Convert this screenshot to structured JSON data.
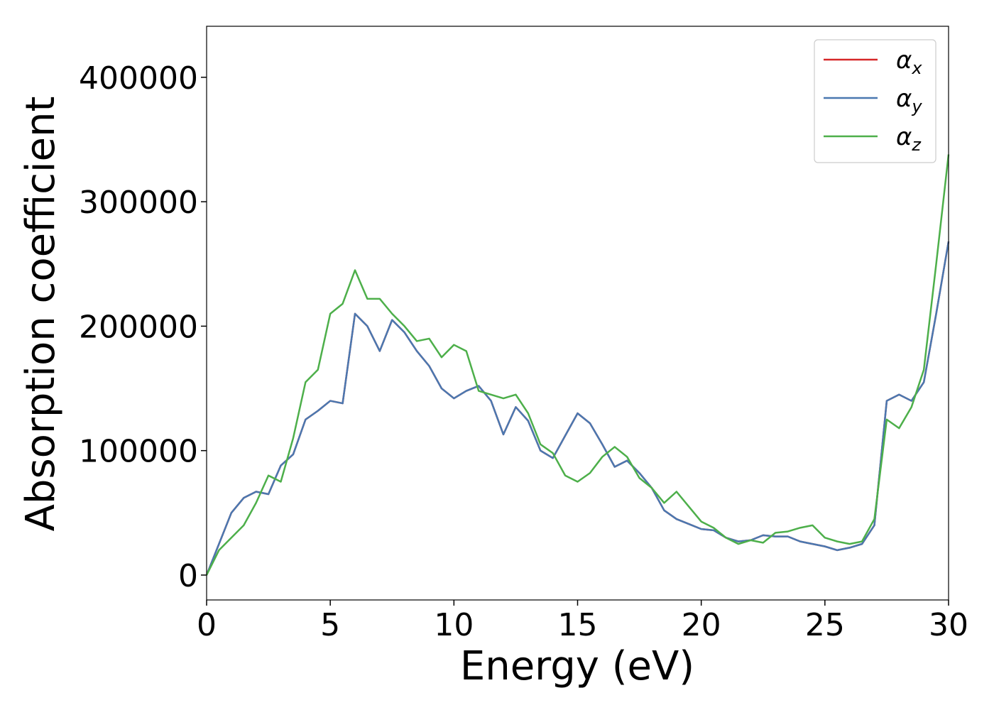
{
  "chart_data": {
    "type": "line",
    "xlabel": "Energy (eV)",
    "ylabel": "Absorption coefficient",
    "x": [
      0,
      0.5,
      1,
      1.5,
      2,
      2.5,
      3,
      3.5,
      4,
      4.5,
      5,
      5.5,
      6,
      6.5,
      7,
      7.5,
      8,
      8.5,
      9,
      9.5,
      10,
      10.5,
      11,
      11.5,
      12,
      12.5,
      13,
      13.5,
      14,
      14.5,
      15,
      15.5,
      16,
      16.5,
      17,
      17.5,
      18,
      18.5,
      19,
      19.5,
      20,
      20.5,
      21,
      21.5,
      22,
      22.5,
      23,
      23.5,
      24,
      24.5,
      25,
      25.5,
      26,
      26.5,
      27,
      27.5,
      28,
      28.5,
      29,
      29.5,
      30
    ],
    "series": [
      {
        "name": "αx",
        "color": "#d62728",
        "values": [
          0,
          25000,
          50000,
          62000,
          67000,
          65000,
          88000,
          97000,
          125000,
          132000,
          140000,
          138000,
          210000,
          200000,
          180000,
          205000,
          195000,
          180000,
          168000,
          150000,
          142000,
          148000,
          152000,
          140000,
          113000,
          135000,
          124000,
          100000,
          94000,
          112000,
          130000,
          122000,
          105000,
          87000,
          92000,
          82000,
          70000,
          52000,
          45000,
          41000,
          37000,
          36000,
          30000,
          27000,
          28000,
          32000,
          31000,
          31000,
          27000,
          25000,
          23000,
          20000,
          22000,
          25000,
          40000,
          140000,
          145000,
          140000,
          155000,
          210000,
          268000
        ]
      },
      {
        "name": "αy",
        "color": "#4a78b0",
        "values": [
          0,
          25000,
          50000,
          62000,
          67000,
          65000,
          88000,
          97000,
          125000,
          132000,
          140000,
          138000,
          210000,
          200000,
          180000,
          205000,
          195000,
          180000,
          168000,
          150000,
          142000,
          148000,
          152000,
          140000,
          113000,
          135000,
          124000,
          100000,
          94000,
          112000,
          130000,
          122000,
          105000,
          87000,
          92000,
          82000,
          70000,
          52000,
          45000,
          41000,
          37000,
          36000,
          30000,
          27000,
          28000,
          32000,
          31000,
          31000,
          27000,
          25000,
          23000,
          20000,
          22000,
          25000,
          40000,
          140000,
          145000,
          140000,
          155000,
          210000,
          268000
        ]
      },
      {
        "name": "αz",
        "color": "#4daf4a",
        "values": [
          0,
          20000,
          30000,
          40000,
          58000,
          80000,
          75000,
          110000,
          155000,
          165000,
          210000,
          218000,
          245000,
          222000,
          222000,
          210000,
          200000,
          188000,
          190000,
          175000,
          185000,
          180000,
          148000,
          145000,
          142000,
          145000,
          130000,
          105000,
          98000,
          80000,
          75000,
          82000,
          95000,
          103000,
          95000,
          78000,
          70000,
          58000,
          67000,
          55000,
          43000,
          38000,
          30000,
          25000,
          28000,
          26000,
          34000,
          35000,
          38000,
          40000,
          30000,
          27000,
          25000,
          27000,
          45000,
          125000,
          118000,
          135000,
          165000,
          250000,
          338000
        ]
      }
    ],
    "xlim": [
      0,
      30
    ],
    "xticks": [
      0,
      5,
      10,
      15,
      20,
      25,
      30
    ],
    "ylim": [
      -20000,
      441000
    ],
    "yticks": [
      0,
      100000,
      200000,
      300000,
      400000
    ],
    "legend": "upper right"
  }
}
